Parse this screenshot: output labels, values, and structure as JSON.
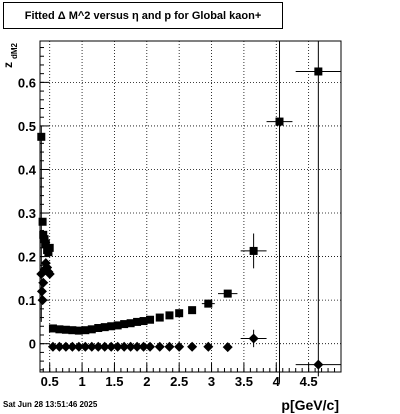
{
  "title_html_pre": "Fitted Δ M^2 versus ",
  "title": "Fitted Δ M^2 versus η and p for Global kaon+",
  "timestamp": "Sat Jun 28 13:51:46 2025",
  "chart_data": {
    "type": "scatter",
    "title": "Fitted Δ M^2 versus η and p for Global kaon+",
    "xlabel": "p[GeV/c]",
    "ylabel": "z",
    "ylabel_sub": "dM2",
    "xlim": [
      0.35,
      5.0
    ],
    "ylim": [
      -0.065,
      0.695
    ],
    "grid": true,
    "xticks": [
      0.5,
      1,
      1.5,
      2,
      2.5,
      3,
      3.5,
      4,
      4.5
    ],
    "xtick_labels": [
      "0.5",
      "1",
      "1.5",
      "2",
      "2.5",
      "3",
      "3.5",
      "4",
      "4.5"
    ],
    "yticks": [
      0,
      0.1,
      0.2,
      0.3,
      0.4,
      0.5,
      0.6
    ],
    "ytick_labels": [
      "0",
      "0.1",
      "0.2",
      "0.3",
      "0.4",
      "0.5",
      "0.6"
    ],
    "series": [
      {
        "marker": "square",
        "points": [
          {
            "x": 0.37,
            "y": 0.475
          },
          {
            "x": 0.39,
            "y": 0.28
          },
          {
            "x": 0.4,
            "y": 0.25
          },
          {
            "x": 0.42,
            "y": 0.24
          },
          {
            "x": 0.44,
            "y": 0.23
          },
          {
            "x": 0.46,
            "y": 0.215
          },
          {
            "x": 0.48,
            "y": 0.21
          },
          {
            "x": 0.5,
            "y": 0.22
          },
          {
            "x": 0.55,
            "y": 0.035
          },
          {
            "x": 0.65,
            "y": 0.033
          },
          {
            "x": 0.75,
            "y": 0.032
          },
          {
            "x": 0.85,
            "y": 0.031
          },
          {
            "x": 0.95,
            "y": 0.03
          },
          {
            "x": 1.05,
            "y": 0.031
          },
          {
            "x": 1.15,
            "y": 0.033
          },
          {
            "x": 1.25,
            "y": 0.036
          },
          {
            "x": 1.35,
            "y": 0.038
          },
          {
            "x": 1.45,
            "y": 0.04
          },
          {
            "x": 1.55,
            "y": 0.042
          },
          {
            "x": 1.65,
            "y": 0.045
          },
          {
            "x": 1.75,
            "y": 0.047
          },
          {
            "x": 1.85,
            "y": 0.05
          },
          {
            "x": 1.95,
            "y": 0.052
          },
          {
            "x": 2.05,
            "y": 0.055
          },
          {
            "x": 2.2,
            "y": 0.06
          },
          {
            "x": 2.35,
            "y": 0.065
          },
          {
            "x": 2.5,
            "y": 0.07
          },
          {
            "x": 2.7,
            "y": 0.077
          },
          {
            "x": 2.95,
            "y": 0.092
          },
          {
            "x": 3.25,
            "y": 0.115
          },
          {
            "x": 3.65,
            "y": 0.213
          },
          {
            "x": 4.05,
            "y": 0.51
          },
          {
            "x": 4.65,
            "y": 0.625
          }
        ]
      },
      {
        "marker": "diamond",
        "points": [
          {
            "x": 0.37,
            "y": 0.16
          },
          {
            "x": 0.38,
            "y": 0.12
          },
          {
            "x": 0.39,
            "y": 0.1
          },
          {
            "x": 0.4,
            "y": 0.14
          },
          {
            "x": 0.42,
            "y": 0.17
          },
          {
            "x": 0.44,
            "y": 0.185
          },
          {
            "x": 0.46,
            "y": 0.175
          },
          {
            "x": 0.48,
            "y": 0.165
          },
          {
            "x": 0.5,
            "y": 0.16
          },
          {
            "x": 0.55,
            "y": -0.007
          },
          {
            "x": 0.65,
            "y": -0.007
          },
          {
            "x": 0.75,
            "y": -0.007
          },
          {
            "x": 0.85,
            "y": -0.007
          },
          {
            "x": 0.95,
            "y": -0.007
          },
          {
            "x": 1.05,
            "y": -0.007
          },
          {
            "x": 1.15,
            "y": -0.007
          },
          {
            "x": 1.25,
            "y": -0.007
          },
          {
            "x": 1.35,
            "y": -0.007
          },
          {
            "x": 1.45,
            "y": -0.007
          },
          {
            "x": 1.55,
            "y": -0.007
          },
          {
            "x": 1.65,
            "y": -0.007
          },
          {
            "x": 1.75,
            "y": -0.007
          },
          {
            "x": 1.85,
            "y": -0.007
          },
          {
            "x": 1.95,
            "y": -0.007
          },
          {
            "x": 2.05,
            "y": -0.007
          },
          {
            "x": 2.2,
            "y": -0.007
          },
          {
            "x": 2.35,
            "y": -0.007
          },
          {
            "x": 2.5,
            "y": -0.007
          },
          {
            "x": 2.7,
            "y": -0.007
          },
          {
            "x": 2.95,
            "y": -0.007
          },
          {
            "x": 3.25,
            "y": -0.008
          },
          {
            "x": 3.65,
            "y": 0.012
          },
          {
            "x": 4.65,
            "y": -0.048
          }
        ]
      }
    ]
  }
}
